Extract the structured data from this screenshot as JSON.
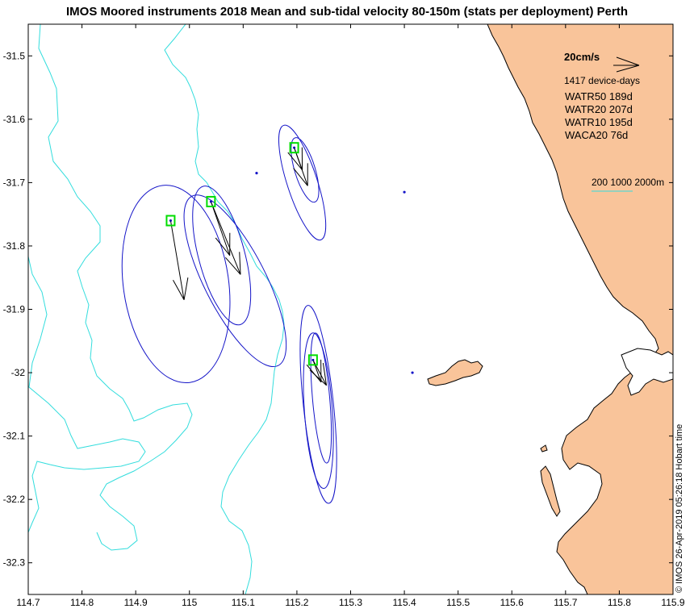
{
  "title": "IMOS Moored instruments 2018 Mean and sub-tidal velocity 80-150m (stats per deployment) Perth",
  "axes": {
    "lon_min": 114.7,
    "lon_max": 115.9,
    "lat_min": -32.35,
    "lat_max": -31.45,
    "x_ticks": [
      "114.7",
      "114.8",
      "114.9",
      "115",
      "115.1",
      "115.2",
      "115.3",
      "115.4",
      "115.5",
      "115.6",
      "115.7",
      "115.8",
      "115.9"
    ],
    "y_ticks": [
      "-31.5",
      "-31.6",
      "-31.7",
      "-31.8",
      "-31.9",
      "-32",
      "-32.1",
      "-32.2",
      "-32.3"
    ]
  },
  "legend": {
    "scale_label": "20cm/s",
    "device_days": "1417 device-days",
    "deployments": [
      "WATR50 189d",
      "WATR20 207d",
      "WATR10 195d",
      "WACA20 76d"
    ],
    "isobath_label": "200 1000 2000m"
  },
  "footer": "© IMOS 26-Apr-2019 05:26:18 Hobart time",
  "colors": {
    "land": "#f9c49a",
    "isobath": "#33dddd",
    "ellipse": "#1515c8",
    "mooring": "#00dd00",
    "vector": "#000000"
  },
  "chart_data": {
    "type": "map",
    "moorings": [
      {
        "name": "WATR50",
        "lon": 114.965,
        "lat": -31.76
      },
      {
        "name": "WATR20",
        "lon": 115.04,
        "lat": -31.73
      },
      {
        "name": "WATR10",
        "lon": 115.195,
        "lat": -31.645
      },
      {
        "name": "WACA20",
        "lon": 115.23,
        "lat": -31.98
      }
    ],
    "vectors": [
      {
        "lon": 114.965,
        "lat": -31.76,
        "u": 0.025,
        "v": -0.125
      },
      {
        "lon": 115.04,
        "lat": -31.73,
        "u": 0.035,
        "v": -0.085
      },
      {
        "lon": 115.04,
        "lat": -31.73,
        "u": 0.055,
        "v": -0.115
      },
      {
        "lon": 115.195,
        "lat": -31.645,
        "u": 0.015,
        "v": -0.035
      },
      {
        "lon": 115.195,
        "lat": -31.645,
        "u": 0.025,
        "v": -0.06
      },
      {
        "lon": 115.23,
        "lat": -31.98,
        "u": 0.015,
        "v": -0.035
      },
      {
        "lon": 115.23,
        "lat": -31.98,
        "u": 0.025,
        "v": -0.04
      }
    ],
    "ellipses": [
      {
        "lon": 114.975,
        "lat": -31.86,
        "rx_deg": 0.098,
        "ry_deg": 0.157,
        "rot": -8
      },
      {
        "lon": 115.085,
        "lat": -31.855,
        "rx_deg": 0.057,
        "ry_deg": 0.15,
        "rot": -27
      },
      {
        "lon": 115.06,
        "lat": -31.815,
        "rx_deg": 0.043,
        "ry_deg": 0.113,
        "rot": -15
      },
      {
        "lon": 115.21,
        "lat": -31.7,
        "rx_deg": 0.028,
        "ry_deg": 0.095,
        "rot": -18
      },
      {
        "lon": 115.215,
        "lat": -31.68,
        "rx_deg": 0.019,
        "ry_deg": 0.053,
        "rot": -17
      },
      {
        "lon": 115.24,
        "lat": -32.05,
        "rx_deg": 0.028,
        "ry_deg": 0.157,
        "rot": -6
      },
      {
        "lon": 115.245,
        "lat": -32.04,
        "rx_deg": 0.016,
        "ry_deg": 0.103,
        "rot": -5
      },
      {
        "lon": 115.24,
        "lat": -32.06,
        "rx_deg": 0.026,
        "ry_deg": 0.123,
        "rot": -4
      }
    ],
    "dots": [
      {
        "lon": 115.125,
        "lat": -31.685
      },
      {
        "lon": 115.4,
        "lat": -31.715
      },
      {
        "lon": 115.415,
        "lat": -32.0
      }
    ]
  }
}
